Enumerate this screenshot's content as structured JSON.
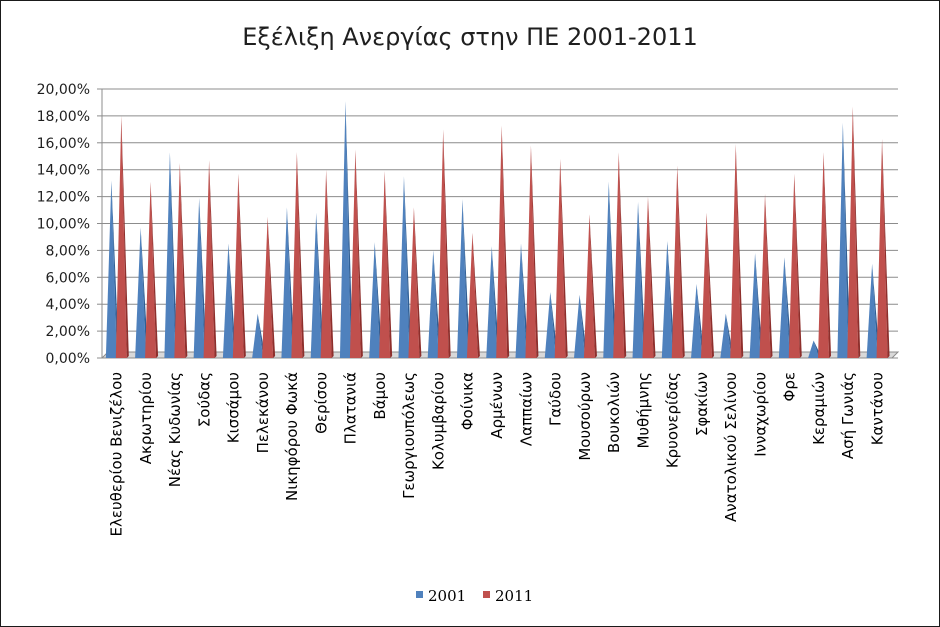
{
  "chart_data": {
    "type": "bar",
    "title": "Εξέλιξη Ανεργίας στην ΠΕ 2001-2011",
    "xlabel": "",
    "ylabel": "",
    "ylim": [
      0,
      0.2
    ],
    "yticks": [
      "0,00%",
      "2,00%",
      "4,00%",
      "6,00%",
      "8,00%",
      "10,00%",
      "12,00%",
      "14,00%",
      "16,00%",
      "18,00%",
      "20,00%"
    ],
    "grid": true,
    "legend_position": "bottom",
    "categories": [
      "Ελευθερίου Βενιζέλου",
      "Ακρωτηρίου",
      "Νέας Κυδωνίας",
      "Σούδας",
      "Κισσάμου",
      "Πελεκάνου",
      "Νικηφόρου Φωκά",
      "Θερίσου",
      "Πλατανιά",
      "Βάμου",
      "Γεωργιουπόλεως",
      "Κολυμβαρίου",
      "Φοίνικα",
      "Αρμένων",
      "Λαππαίων",
      "Γαύδου",
      "Μουσούρων",
      "Βουκολιών",
      "Μυθήμνης",
      "Κρυονερίδας",
      "Σφακίων",
      "Ανατολικού Σελίνου",
      "Ινναχωρίου",
      "Φρε",
      "Κεραμιών",
      "Ασή Γωνιάς",
      "Καντάνου"
    ],
    "series": [
      {
        "name": "2001",
        "color": "#4f81bd",
        "values": [
          0.132,
          0.097,
          0.153,
          0.119,
          0.085,
          0.033,
          0.112,
          0.108,
          0.191,
          0.086,
          0.135,
          0.08,
          0.118,
          0.083,
          0.085,
          0.049,
          0.047,
          0.131,
          0.116,
          0.087,
          0.055,
          0.033,
          0.078,
          0.075,
          0.013,
          0.175,
          0.07
        ]
      },
      {
        "name": "2011",
        "color": "#c0504d",
        "values": [
          0.18,
          0.131,
          0.145,
          0.147,
          0.137,
          0.105,
          0.153,
          0.14,
          0.155,
          0.139,
          0.112,
          0.17,
          0.093,
          0.173,
          0.158,
          0.148,
          0.107,
          0.153,
          0.12,
          0.143,
          0.108,
          0.159,
          0.122,
          0.137,
          0.153,
          0.187,
          0.163
        ]
      }
    ]
  }
}
